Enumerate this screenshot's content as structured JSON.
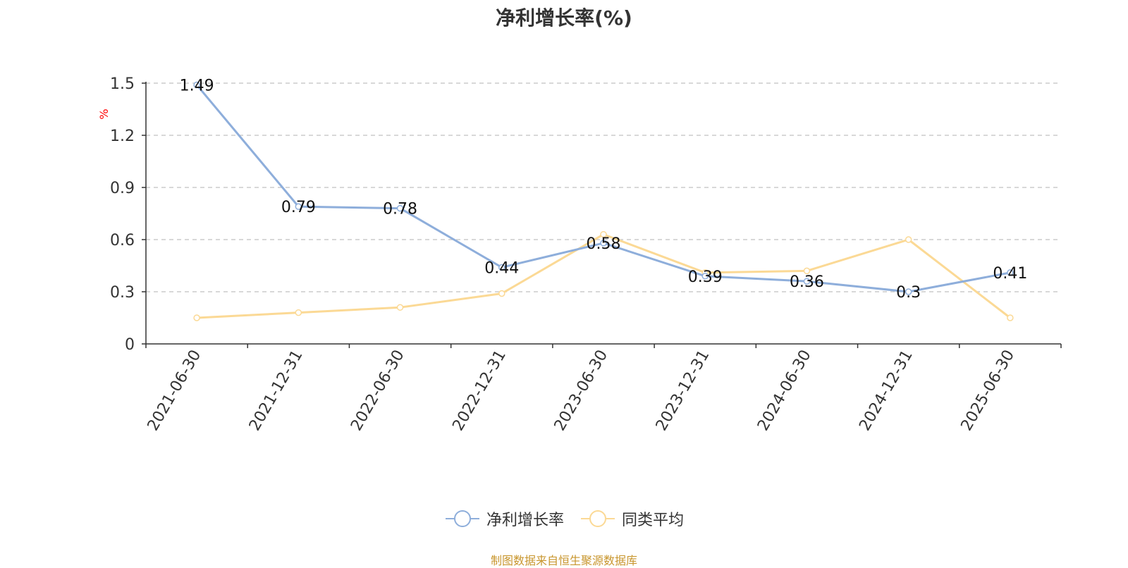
{
  "chart_data": {
    "type": "line",
    "title": "净利增长率(%)",
    "ylabel": "%",
    "categories": [
      "2021-06-30",
      "2021-12-31",
      "2022-06-30",
      "2022-12-31",
      "2023-06-30",
      "2023-12-31",
      "2024-06-30",
      "2024-12-31",
      "2025-06-30"
    ],
    "series": [
      {
        "name": "净利增长率",
        "color": "#8eaedb",
        "values": [
          1.49,
          0.79,
          0.78,
          0.44,
          0.58,
          0.39,
          0.36,
          0.3,
          0.41
        ],
        "labels": [
          "1.49",
          "0.79",
          "0.78",
          "0.44",
          "0.58",
          "0.39",
          "0.36",
          "0.3",
          "0.41"
        ]
      },
      {
        "name": "同类平均",
        "color": "#fbd995",
        "values": [
          0.15,
          0.18,
          0.21,
          0.29,
          0.63,
          0.41,
          0.42,
          0.6,
          0.15
        ]
      }
    ],
    "yticks": [
      "0",
      "0.3",
      "0.6",
      "0.9",
      "1.2",
      "1.5"
    ],
    "ylim": [
      0,
      1.5
    ],
    "grid": true,
    "legend_position": "bottom"
  },
  "source_note": "制图数据来自恒生聚源数据库"
}
